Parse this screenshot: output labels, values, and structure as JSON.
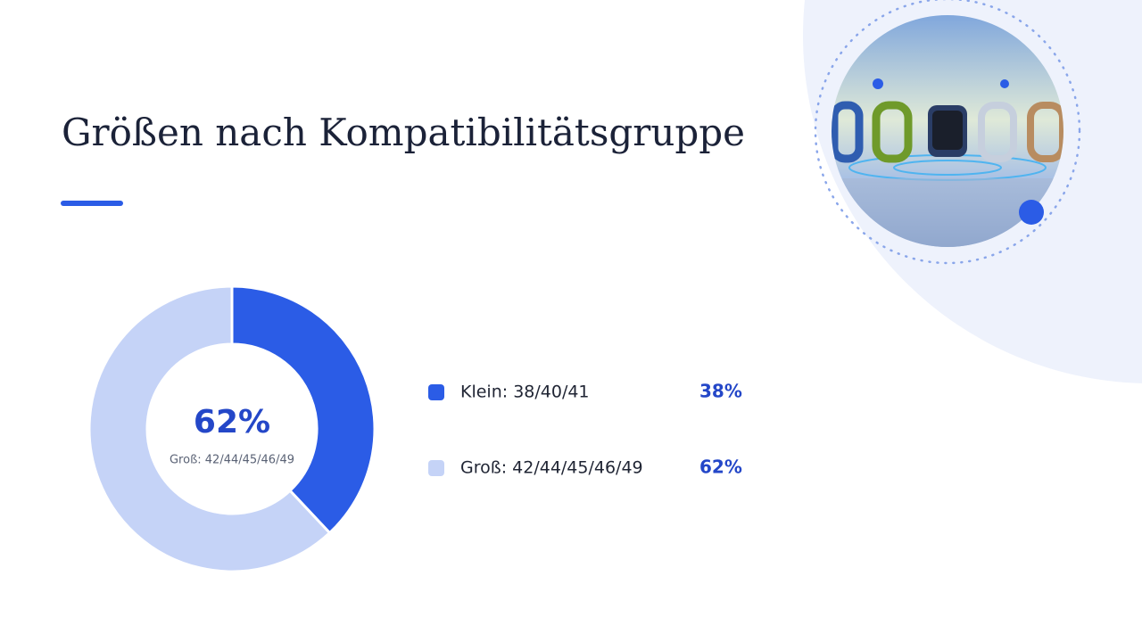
{
  "chart_data": {
    "type": "donut",
    "title": "Größen nach Kompatibilitätsgruppe",
    "categories": [
      "Klein: 38/40/41",
      "Groß: 42/44/45/46/49"
    ],
    "values": [
      38,
      62
    ],
    "value_labels": [
      "38%",
      "62%"
    ],
    "colors": [
      "#2b5ce6",
      "#c5d3f7"
    ],
    "center_index": 1
  }
}
